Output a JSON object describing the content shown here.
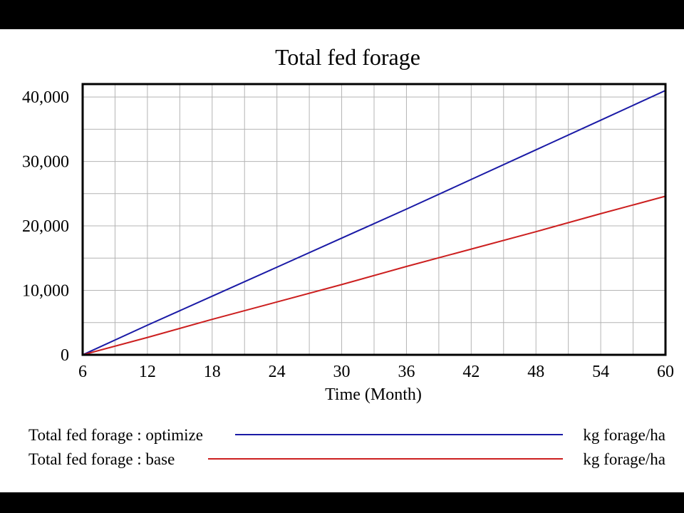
{
  "chart_data": {
    "type": "line",
    "title": "Total fed forage",
    "xlabel": "Time (Month)",
    "ylabel": "",
    "xlim": [
      6,
      60
    ],
    "ylim": [
      0,
      42000
    ],
    "x_ticks": [
      6,
      12,
      18,
      24,
      30,
      36,
      42,
      48,
      54,
      60
    ],
    "y_ticks": [
      0,
      10000,
      20000,
      30000,
      40000
    ],
    "y_tick_labels": [
      "0",
      "10,000",
      "20,000",
      "30,000",
      "40,000"
    ],
    "grid": true,
    "x": [
      6,
      12,
      18,
      24,
      30,
      36,
      42,
      48,
      54,
      60
    ],
    "series": [
      {
        "name": "Total fed forage : optimize",
        "unit": "kg forage/ha",
        "color": "#1a1aa6",
        "values": [
          0,
          4600,
          9100,
          13600,
          18100,
          22600,
          27200,
          31800,
          36400,
          41000
        ]
      },
      {
        "name": "Total fed forage : base",
        "unit": "kg forage/ha",
        "color": "#cc1f1f",
        "values": [
          0,
          2700,
          5500,
          8200,
          10900,
          13700,
          16400,
          19100,
          21900,
          24600
        ]
      }
    ],
    "legend_position": "bottom"
  }
}
